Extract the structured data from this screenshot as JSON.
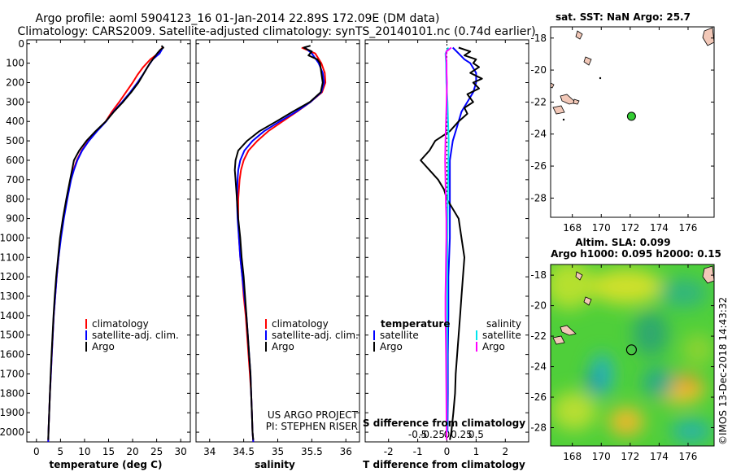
{
  "header": {
    "line1": "Argo profile: aoml 5904123_16 01-Jan-2014 22.89S 172.09E (DM data)",
    "line2": "Climatology: CARS2009. Satellite-adjusted climatology: synTS_20140101.nc (0.74d earlier)"
  },
  "colors": {
    "climatology": "#ff0000",
    "satellite": "#0000ff",
    "argo": "#000000",
    "salinity_sat": "#00e5ee",
    "salinity_argo": "#ff00ff",
    "clim_diff": "#00e5ee"
  },
  "depth_axis": {
    "ticks": [
      0,
      100,
      200,
      300,
      400,
      500,
      600,
      700,
      800,
      900,
      1000,
      1100,
      1200,
      1300,
      1400,
      1500,
      1600,
      1700,
      1800,
      1900,
      2000
    ],
    "labels": [
      "0",
      "100",
      "200",
      "300",
      "400",
      "500",
      "600",
      "700",
      "800",
      "900",
      "1000",
      "1100",
      "1200",
      "1300",
      "1400",
      "1500",
      "1600",
      "1700",
      "1800",
      "1900",
      "2000"
    ]
  },
  "chart_data": [
    {
      "type": "line",
      "panel": "temperature",
      "xlabel": "temperature (deg C)",
      "xlim": [
        -2,
        32
      ],
      "ylim": [
        2050,
        -20
      ],
      "xticks": [
        0,
        5,
        10,
        15,
        20,
        25,
        30
      ],
      "xtick_labels": [
        "0",
        "5",
        "10",
        "15",
        "20",
        "25",
        "30"
      ],
      "legend": [
        "climatology",
        "satellite-adj. clim.",
        "Argo"
      ],
      "series": [
        {
          "name": "climatology",
          "color": "#ff0000",
          "depth": [
            20,
            50,
            80,
            120,
            160,
            200,
            250,
            300,
            350,
            400,
            450,
            500,
            550,
            600,
            650,
            700,
            800,
            900,
            1000,
            1100,
            1200,
            1300,
            1400,
            1500,
            1600,
            1700,
            1800,
            1900,
            2000,
            2050
          ],
          "values": [
            26.2,
            25.3,
            23.7,
            22.2,
            21.0,
            20.0,
            18.6,
            17.2,
            15.7,
            14.4,
            12.5,
            10.8,
            9.4,
            8.4,
            7.7,
            7.1,
            6.3,
            5.6,
            5.0,
            4.6,
            4.2,
            3.9,
            3.6,
            3.4,
            3.2,
            3.0,
            2.8,
            2.65,
            2.5,
            2.45
          ]
        },
        {
          "name": "satellite-adj. clim.",
          "color": "#0000ff",
          "depth": [
            20,
            50,
            80,
            120,
            160,
            200,
            250,
            300,
            350,
            400,
            450,
            500,
            550,
            600,
            650,
            700,
            800,
            900,
            1000,
            1100,
            1200,
            1300,
            1400,
            1500,
            1600,
            1700,
            1800,
            1900,
            2000,
            2050
          ],
          "values": [
            26.3,
            25.6,
            24.2,
            23.1,
            22.1,
            21.0,
            19.5,
            17.8,
            16.0,
            14.5,
            12.6,
            10.9,
            9.5,
            8.5,
            7.8,
            7.2,
            6.4,
            5.7,
            5.1,
            4.6,
            4.2,
            3.9,
            3.6,
            3.4,
            3.2,
            3.0,
            2.8,
            2.65,
            2.5,
            2.45
          ]
        },
        {
          "name": "Argo",
          "color": "#000000",
          "depth": [
            10,
            20,
            30,
            50,
            80,
            100,
            150,
            200,
            250,
            300,
            350,
            400,
            450,
            500,
            550,
            600,
            650,
            700,
            800,
            900,
            1000,
            1100,
            1200,
            1300,
            1400,
            1500,
            1600,
            1700,
            1800,
            1900,
            2000,
            2040
          ],
          "values": [
            26.0,
            26.4,
            25.8,
            25.1,
            24.2,
            23.6,
            22.4,
            21.2,
            19.7,
            18.0,
            16.1,
            14.4,
            12.3,
            10.4,
            8.9,
            7.8,
            7.4,
            7.0,
            6.2,
            5.5,
            4.9,
            4.5,
            4.1,
            3.8,
            3.55,
            3.35,
            3.15,
            2.95,
            2.8,
            2.65,
            2.5,
            2.45
          ]
        }
      ]
    },
    {
      "type": "line",
      "panel": "salinity",
      "xlabel": "salinity",
      "xlim": [
        33.8,
        36.2
      ],
      "ylim": [
        2050,
        -20
      ],
      "xticks": [
        34,
        34.5,
        35,
        35.5,
        36
      ],
      "xtick_labels": [
        "34",
        "34.5",
        "35",
        "35.5",
        "36"
      ],
      "legend": [
        "climatology",
        "satellite-adj. clim.",
        "Argo"
      ],
      "annotation": [
        "US ARGO PROJECT",
        "PI: STEPHEN RISER"
      ],
      "series": [
        {
          "name": "climatology",
          "color": "#ff0000",
          "depth": [
            20,
            50,
            100,
            150,
            200,
            250,
            300,
            350,
            400,
            450,
            500,
            550,
            600,
            650,
            700,
            800,
            900,
            1000,
            1100,
            1200,
            1300,
            1400,
            1500,
            1600,
            1700,
            1800,
            1900,
            2000,
            2050
          ],
          "values": [
            35.35,
            35.55,
            35.64,
            35.69,
            35.7,
            35.65,
            35.48,
            35.28,
            35.07,
            34.86,
            34.7,
            34.57,
            34.5,
            34.46,
            34.44,
            34.42,
            34.42,
            34.43,
            34.45,
            34.48,
            34.5,
            34.53,
            34.55,
            34.57,
            34.59,
            34.61,
            34.62,
            34.63,
            34.64
          ]
        },
        {
          "name": "satellite-adj. clim.",
          "color": "#0000ff",
          "depth": [
            20,
            50,
            100,
            150,
            200,
            250,
            300,
            350,
            400,
            450,
            500,
            550,
            600,
            650,
            700,
            800,
            900,
            1000,
            1100,
            1200,
            1300,
            1400,
            1500,
            1600,
            1700,
            1800,
            1900,
            2000,
            2050
          ],
          "values": [
            35.4,
            35.5,
            35.6,
            35.66,
            35.68,
            35.64,
            35.48,
            35.27,
            35.03,
            34.8,
            34.63,
            34.51,
            34.45,
            34.42,
            34.41,
            34.4,
            34.41,
            34.43,
            34.45,
            34.48,
            34.51,
            34.54,
            34.56,
            34.58,
            34.6,
            34.61,
            34.62,
            34.63,
            34.64
          ]
        },
        {
          "name": "Argo",
          "color": "#000000",
          "depth": [
            10,
            20,
            40,
            60,
            80,
            100,
            150,
            200,
            250,
            300,
            350,
            400,
            450,
            500,
            550,
            600,
            650,
            700,
            800,
            900,
            1000,
            1100,
            1200,
            1300,
            1400,
            1500,
            1600,
            1700,
            1800,
            1900,
            2000,
            2040
          ],
          "values": [
            35.48,
            35.38,
            35.5,
            35.45,
            35.58,
            35.62,
            35.64,
            35.66,
            35.63,
            35.47,
            35.22,
            34.98,
            34.73,
            34.55,
            34.42,
            34.38,
            34.37,
            34.38,
            34.4,
            34.42,
            34.45,
            34.47,
            34.5,
            34.52,
            34.54,
            34.56,
            34.58,
            34.6,
            34.61,
            34.62,
            34.63,
            34.64
          ]
        }
      ]
    },
    {
      "type": "line",
      "panel": "differences",
      "xlabel": "T difference from climatology",
      "xlim": [
        -2.8,
        2.8
      ],
      "ylim": [
        2050,
        -20
      ],
      "xticks": [
        -2,
        -1,
        0,
        1,
        2
      ],
      "xtick_labels": [
        "-2",
        "-1",
        "0",
        "1",
        "2"
      ],
      "upper_label": "S difference from climatology",
      "upper_ticks": [
        -0.5,
        -0.25,
        0,
        0.25,
        0.5
      ],
      "upper_tick_labels": [
        "-0.5",
        "-0.25",
        "0",
        "0.25",
        "0.5"
      ],
      "legend_left_title": "temperature",
      "legend_right_title": "salinity",
      "legend_left": [
        "satellite",
        "Argo"
      ],
      "legend_right": [
        "satellite",
        "Argo"
      ],
      "series": [
        {
          "name": "temperature satellite",
          "color": "#0000ff",
          "depth": [
            20,
            50,
            80,
            100,
            150,
            200,
            250,
            300,
            350,
            400,
            450,
            500,
            550,
            600,
            650,
            700,
            800,
            900,
            1000,
            1200,
            1400,
            1600,
            1800,
            2000
          ],
          "values": [
            0.2,
            0.4,
            0.6,
            0.8,
            1.0,
            1.0,
            0.9,
            0.7,
            0.5,
            0.4,
            0.3,
            0.2,
            0.15,
            0.1,
            0.1,
            0.1,
            0.1,
            0.1,
            0.1,
            0.05,
            0.05,
            0.03,
            0.03,
            0.02
          ]
        },
        {
          "name": "temperature Argo",
          "color": "#000000",
          "depth": [
            20,
            40,
            60,
            80,
            100,
            120,
            150,
            180,
            200,
            230,
            260,
            300,
            330,
            360,
            400,
            450,
            500,
            550,
            600,
            650,
            700,
            750,
            800,
            850,
            900,
            1000,
            1100,
            1200,
            1300,
            1400,
            1500,
            1600,
            1700,
            1800,
            1900,
            2000,
            2040
          ],
          "values": [
            0.4,
            0.8,
            0.6,
            1.0,
            0.9,
            1.1,
            0.8,
            1.2,
            0.9,
            1.1,
            0.7,
            0.9,
            0.6,
            0.7,
            0.4,
            0.1,
            -0.4,
            -0.6,
            -0.9,
            -0.6,
            -0.3,
            -0.1,
            0.0,
            0.2,
            0.4,
            0.5,
            0.6,
            0.55,
            0.5,
            0.45,
            0.4,
            0.35,
            0.3,
            0.28,
            0.22,
            0.15,
            0.1
          ]
        },
        {
          "name": "salinity satellite",
          "color": "#00e5ee",
          "depth": [
            20,
            50,
            100,
            200,
            300,
            400,
            500,
            600,
            800,
            1000,
            1200,
            1400,
            1600,
            1800,
            2000
          ],
          "values": [
            0.05,
            -0.05,
            -0.03,
            -0.02,
            0.02,
            0.04,
            0.06,
            0.05,
            0.03,
            0.02,
            0.01,
            0.01,
            0.005,
            0.003,
            0.002
          ]
        },
        {
          "name": "salinity Argo",
          "color": "#ff00ff",
          "depth": [
            20,
            40,
            60,
            100,
            150,
            200,
            300,
            400,
            500,
            600,
            700,
            800,
            900,
            1000,
            1100,
            1200,
            1300,
            1400,
            1500,
            1600,
            1800,
            2000,
            2040
          ],
          "values": [
            0.15,
            -0.02,
            -0.03,
            -0.01,
            -0.01,
            0.0,
            -0.01,
            -0.03,
            -0.05,
            -0.06,
            -0.05,
            -0.04,
            -0.02,
            -0.02,
            -0.03,
            -0.04,
            -0.05,
            -0.05,
            -0.04,
            -0.03,
            -0.02,
            -0.01,
            -0.01
          ]
        }
      ]
    },
    {
      "type": "scatter",
      "panel": "sst_map",
      "title": "sat. SST: NaN Argo: 25.7",
      "xticks": [
        168,
        170,
        172,
        174,
        176
      ],
      "yticks": [
        -18,
        -20,
        -22,
        -24,
        -26,
        -28
      ],
      "xlim": [
        166.5,
        177.8
      ],
      "ylim": [
        -29.2,
        -17.3
      ],
      "point": {
        "lon": 172.09,
        "lat": -22.89
      }
    },
    {
      "type": "heatmap",
      "panel": "sla_map",
      "title": "Altim. SLA: 0.099",
      "subtitle": "Argo h1000: 0.095 h2000: 0.15",
      "xticks": [
        168,
        170,
        172,
        174,
        176
      ],
      "yticks": [
        -18,
        -20,
        -22,
        -24,
        -26,
        -28
      ],
      "xlim": [
        166.5,
        177.8
      ],
      "ylim": [
        -29.2,
        -17.3
      ],
      "point": {
        "lon": 172.09,
        "lat": -22.89
      }
    }
  ],
  "footer": {
    "stamp": "©IMOS 13-Dec-2018 14:43:32"
  }
}
